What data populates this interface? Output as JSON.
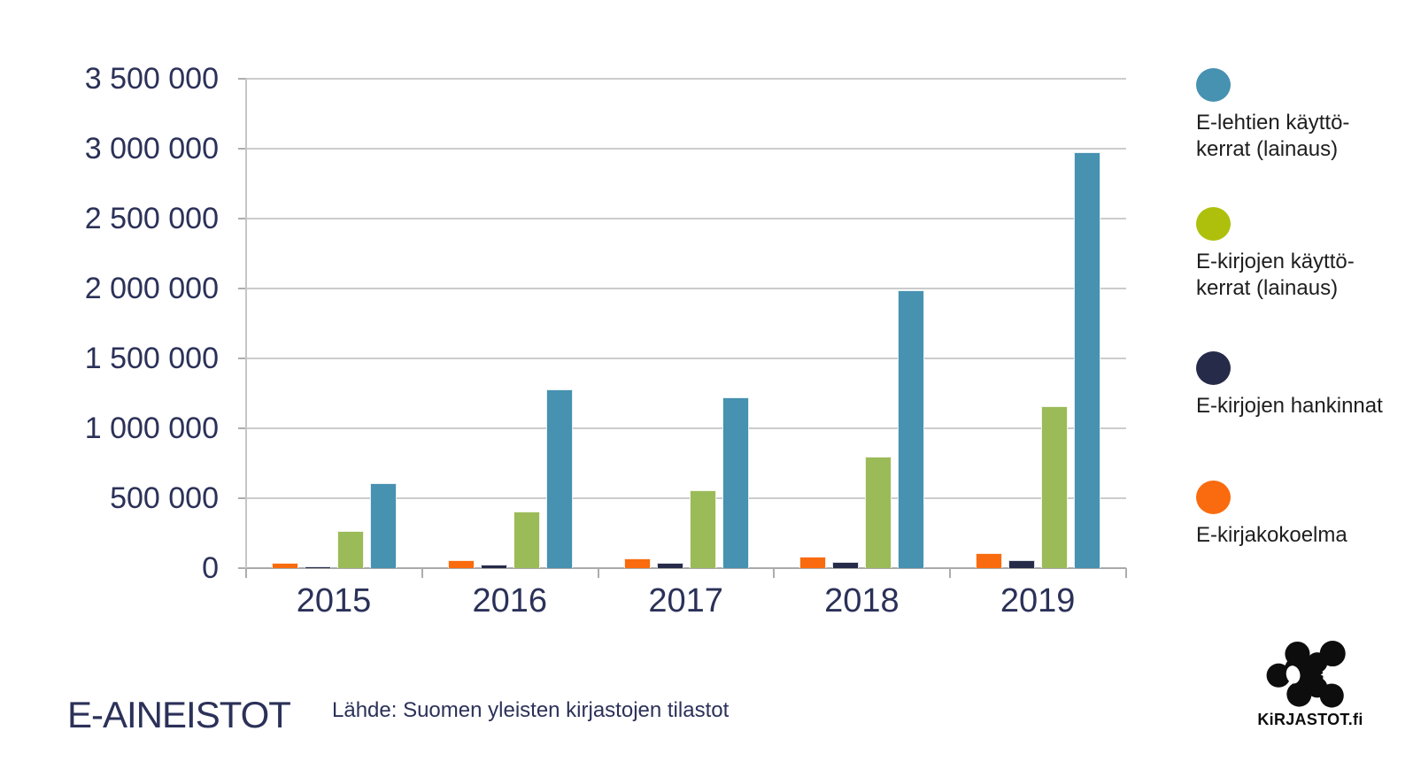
{
  "title": "E-AINEISTOT",
  "source": "Lähde: Suomen yleisten kirjastojen tilastot",
  "logo": {
    "wordmark": "KiRJASTOT.fi"
  },
  "y_axis": {
    "labels": [
      "3 500 000",
      "3 000 000",
      "2 500 000",
      "2 000 000",
      "1 500 000",
      "1 000 000",
      "500 000",
      "0"
    ]
  },
  "legend": {
    "items": [
      {
        "color": "#4791b1",
        "lines": [
          "E-lehtien käyttö-",
          "kerrat (lainaus)"
        ]
      },
      {
        "color": "#aec00c",
        "lines": [
          "E-kirjojen käyttö-",
          "kerrat (lainaus)"
        ]
      },
      {
        "color": "#262b49",
        "lines": [
          "E-kirjojen hankinnat"
        ]
      },
      {
        "color": "#f96b0e",
        "lines": [
          "E-kirjakokoelma"
        ]
      }
    ]
  },
  "colors": {
    "accent_teal": "#4791b1",
    "accent_green_bar": "#9bbb58",
    "accent_olive_legend": "#aec00c",
    "accent_navy": "#262b49",
    "accent_orange": "#f96b0e",
    "text_navy": "#2b3158",
    "gridline": "#cccccc",
    "axis": "#a9a9a9"
  },
  "chart_data": {
    "type": "bar",
    "title": "E-AINEISTOT",
    "categories": [
      "2015",
      "2016",
      "2017",
      "2018",
      "2019"
    ],
    "series": [
      {
        "name": "E-kirjakokoelma",
        "color": "#f96b0e",
        "values": [
          40000,
          60000,
          70000,
          85000,
          105000
        ]
      },
      {
        "name": "E-kirjojen hankinnat",
        "color": "#262b49",
        "values": [
          15000,
          25000,
          35000,
          45000,
          60000
        ]
      },
      {
        "name": "E-kirjojen käyttökerrat (lainaus)",
        "color": "#9bbb58",
        "values": [
          265000,
          405000,
          560000,
          800000,
          1160000
        ]
      },
      {
        "name": "E-lehtien käyttökerrat (lainaus)",
        "color": "#4791b1",
        "values": [
          610000,
          1280000,
          1220000,
          1990000,
          2975000
        ]
      }
    ],
    "xlabel": "",
    "ylabel": "",
    "ylim": [
      0,
      3500000
    ],
    "ytick_step": 500000,
    "grid": true,
    "legend_position": "right"
  }
}
